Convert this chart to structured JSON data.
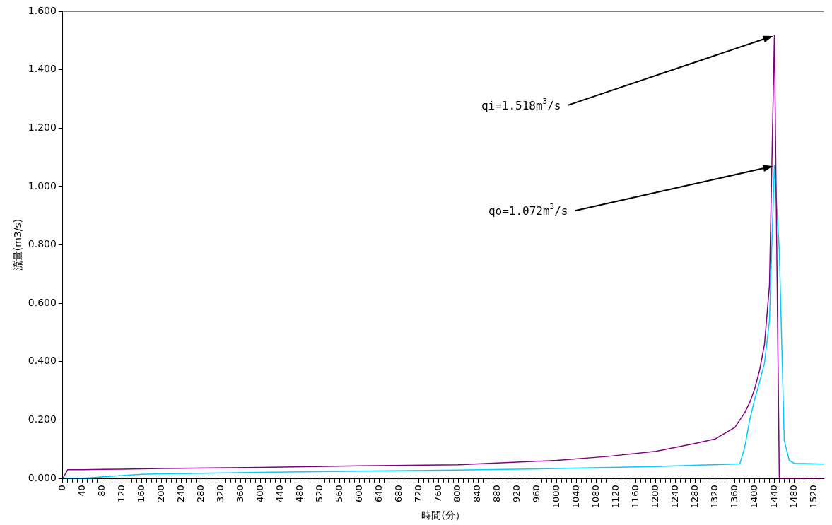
{
  "chart_data": {
    "type": "line",
    "xlabel": "時間(分）",
    "ylabel": "流量(m3/s)",
    "series": [
      {
        "color": "#800080",
        "x": [
          0,
          10,
          40,
          80,
          120,
          160,
          200,
          400,
          600,
          800,
          1000,
          1100,
          1200,
          1280,
          1320,
          1340,
          1360,
          1380,
          1390,
          1400,
          1410,
          1420,
          1430,
          1440,
          1450,
          1460,
          1480,
          1500,
          1540
        ],
        "values": [
          0,
          0.03,
          0.03,
          0.031,
          0.032,
          0.033,
          0.034,
          0.038,
          0.043,
          0.047,
          0.062,
          0.075,
          0.093,
          0.12,
          0.135,
          0.155,
          0.175,
          0.225,
          0.26,
          0.306,
          0.37,
          0.46,
          0.66,
          1.518,
          0,
          0,
          0,
          0,
          0
        ]
      },
      {
        "color": "#00ccff",
        "x": [
          0,
          40,
          80,
          120,
          160,
          200,
          400,
          600,
          800,
          1000,
          1200,
          1300,
          1370,
          1380,
          1390,
          1400,
          1410,
          1420,
          1430,
          1440,
          1450,
          1460,
          1470,
          1480,
          1500,
          1540
        ],
        "values": [
          0,
          0.001,
          0.005,
          0.01,
          0.014,
          0.016,
          0.021,
          0.025,
          0.029,
          0.034,
          0.041,
          0.046,
          0.05,
          0.106,
          0.2,
          0.27,
          0.33,
          0.395,
          0.54,
          1.072,
          0.78,
          0.13,
          0.062,
          0.052,
          0.051,
          0.049
        ]
      }
    ],
    "xlim": [
      0,
      1540
    ],
    "xticks": [
      0,
      {
        "value": 10,
        "label": null
      },
      {
        "value": 20,
        "label": null
      },
      {
        "value": 30,
        "label": null
      },
      40,
      {
        "value": 50,
        "label": null
      },
      {
        "value": 60,
        "label": null
      },
      {
        "value": 70,
        "label": null
      },
      80,
      {
        "value": 90,
        "label": null
      },
      {
        "value": 100,
        "label": null
      },
      {
        "value": 110,
        "label": null
      },
      120,
      {
        "value": 130,
        "label": null
      },
      {
        "value": 140,
        "label": null
      },
      {
        "value": 150,
        "label": null
      },
      160,
      {
        "value": 170,
        "label": null
      },
      {
        "value": 180,
        "label": null
      },
      {
        "value": 190,
        "label": null
      },
      200,
      {
        "value": 210,
        "label": null
      },
      {
        "value": 220,
        "label": null
      },
      {
        "value": 230,
        "label": null
      },
      240,
      {
        "value": 250,
        "label": null
      },
      {
        "value": 260,
        "label": null
      },
      {
        "value": 270,
        "label": null
      },
      280,
      {
        "value": 290,
        "label": null
      },
      {
        "value": 300,
        "label": null
      },
      {
        "value": 310,
        "label": null
      },
      320,
      {
        "value": 330,
        "label": null
      },
      {
        "value": 340,
        "label": null
      },
      {
        "value": 350,
        "label": null
      },
      360,
      {
        "value": 370,
        "label": null
      },
      {
        "value": 380,
        "label": null
      },
      {
        "value": 390,
        "label": null
      },
      400,
      {
        "value": 410,
        "label": null
      },
      {
        "value": 420,
        "label": null
      },
      {
        "value": 430,
        "label": null
      },
      440,
      {
        "value": 450,
        "label": null
      },
      {
        "value": 460,
        "label": null
      },
      {
        "value": 470,
        "label": null
      },
      480,
      {
        "value": 490,
        "label": null
      },
      {
        "value": 500,
        "label": null
      },
      {
        "value": 510,
        "label": null
      },
      520,
      {
        "value": 530,
        "label": null
      },
      {
        "value": 540,
        "label": null
      },
      {
        "value": 550,
        "label": null
      },
      560,
      {
        "value": 570,
        "label": null
      },
      {
        "value": 580,
        "label": null
      },
      {
        "value": 590,
        "label": null
      },
      600,
      {
        "value": 610,
        "label": null
      },
      {
        "value": 620,
        "label": null
      },
      {
        "value": 630,
        "label": null
      },
      640,
      {
        "value": 650,
        "label": null
      },
      {
        "value": 660,
        "label": null
      },
      {
        "value": 670,
        "label": null
      },
      680,
      {
        "value": 690,
        "label": null
      },
      {
        "value": 700,
        "label": null
      },
      {
        "value": 710,
        "label": null
      },
      720,
      {
        "value": 730,
        "label": null
      },
      {
        "value": 740,
        "label": null
      },
      {
        "value": 750,
        "label": null
      },
      760,
      {
        "value": 770,
        "label": null
      },
      {
        "value": 780,
        "label": null
      },
      {
        "value": 790,
        "label": null
      },
      800,
      {
        "value": 810,
        "label": null
      },
      {
        "value": 820,
        "label": null
      },
      {
        "value": 830,
        "label": null
      },
      840,
      {
        "value": 850,
        "label": null
      },
      {
        "value": 860,
        "label": null
      },
      {
        "value": 870,
        "label": null
      },
      880,
      {
        "value": 890,
        "label": null
      },
      {
        "value": 900,
        "label": null
      },
      {
        "value": 910,
        "label": null
      },
      920,
      {
        "value": 930,
        "label": null
      },
      {
        "value": 940,
        "label": null
      },
      {
        "value": 950,
        "label": null
      },
      960,
      {
        "value": 970,
        "label": null
      },
      {
        "value": 980,
        "label": null
      },
      {
        "value": 990,
        "label": null
      },
      1000,
      {
        "value": 1010,
        "label": null
      },
      {
        "value": 1020,
        "label": null
      },
      {
        "value": 1030,
        "label": null
      },
      1040,
      {
        "value": 1050,
        "label": null
      },
      {
        "value": 1060,
        "label": null
      },
      {
        "value": 1070,
        "label": null
      },
      1080,
      {
        "value": 1090,
        "label": null
      },
      {
        "value": 1100,
        "label": null
      },
      {
        "value": 1110,
        "label": null
      },
      1120,
      {
        "value": 1130,
        "label": null
      },
      {
        "value": 1140,
        "label": null
      },
      {
        "value": 1150,
        "label": null
      },
      1160,
      {
        "value": 1170,
        "label": null
      },
      {
        "value": 1180,
        "label": null
      },
      {
        "value": 1190,
        "label": null
      },
      1200,
      {
        "value": 1210,
        "label": null
      },
      {
        "value": 1220,
        "label": null
      },
      {
        "value": 1230,
        "label": null
      },
      1240,
      {
        "value": 1250,
        "label": null
      },
      {
        "value": 1260,
        "label": null
      },
      {
        "value": 1270,
        "label": null
      },
      1280,
      {
        "value": 1290,
        "label": null
      },
      {
        "value": 1300,
        "label": null
      },
      {
        "value": 1310,
        "label": null
      },
      1320,
      {
        "value": 1330,
        "label": null
      },
      {
        "value": 1340,
        "label": null
      },
      {
        "value": 1350,
        "label": null
      },
      1360,
      {
        "value": 1370,
        "label": null
      },
      {
        "value": 1380,
        "label": null
      },
      {
        "value": 1390,
        "label": null
      },
      1400,
      {
        "value": 1410,
        "label": null
      },
      {
        "value": 1420,
        "label": null
      },
      {
        "value": 1430,
        "label": null
      },
      1440,
      {
        "value": 1450,
        "label": null
      },
      {
        "value": 1460,
        "label": null
      },
      {
        "value": 1470,
        "label": null
      },
      1480,
      {
        "value": 1490,
        "label": null
      },
      {
        "value": 1500,
        "label": null
      },
      {
        "value": 1510,
        "label": null
      },
      1520,
      {
        "value": 1530,
        "label": null
      }
    ],
    "ylim": [
      0,
      1.6
    ],
    "yticks": [
      {
        "value": 0,
        "label": "0.000"
      },
      {
        "value": 0.2,
        "label": "0.200"
      },
      {
        "value": 0.4,
        "label": "0.400"
      },
      {
        "value": 0.6,
        "label": "0.600"
      },
      {
        "value": 0.8,
        "label": "0.800"
      },
      {
        "value": 1,
        "label": "1.000"
      },
      {
        "value": 1.2,
        "label": "1.200"
      },
      {
        "value": 1.4,
        "label": "1.400"
      },
      {
        "value": 1.6,
        "label": "1.600"
      }
    ],
    "grid": false,
    "legend": false,
    "marker": "none",
    "line_style": "solid",
    "annotations": [
      "qi=1.518m$^{3}$/s",
      "qo=1.072m$^{3}$/s"
    ]
  }
}
